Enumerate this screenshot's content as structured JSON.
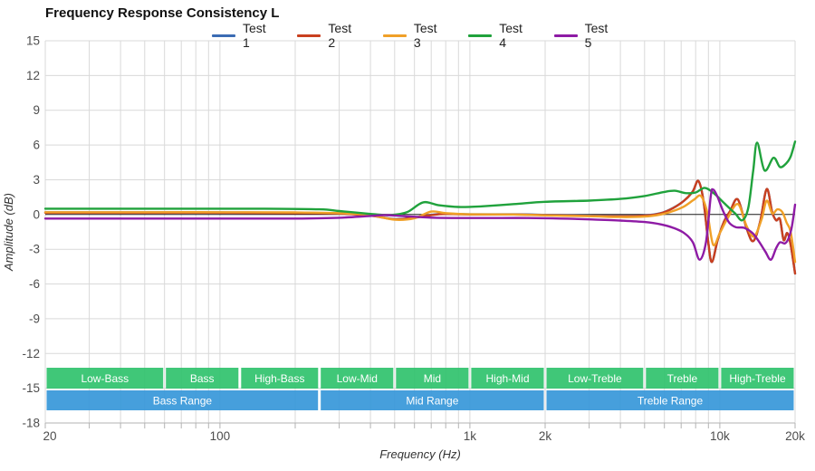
{
  "title": "Frequency Response Consistency L",
  "legend": [
    {
      "label": "Test 1",
      "color": "#3b6cb4"
    },
    {
      "label": "Test 2",
      "color": "#c9401f"
    },
    {
      "label": "Test 3",
      "color": "#f0a028"
    },
    {
      "label": "Test 4",
      "color": "#20a23c"
    },
    {
      "label": "Test 5",
      "color": "#8e1ba5"
    }
  ],
  "chart_data": {
    "type": "line",
    "title": "Frequency Response Consistency L",
    "xlabel": "Frequency (Hz)",
    "ylabel": "Amplitude (dB)",
    "x_scale": "log",
    "xlim": [
      20,
      20000
    ],
    "ylim": [
      -18,
      15
    ],
    "y_ticks": [
      15,
      12,
      9,
      6,
      3,
      0,
      -3,
      -6,
      -9,
      -12,
      -15,
      -18
    ],
    "x_ticks": [
      {
        "v": 20,
        "label": "20"
      },
      {
        "v": 100,
        "label": "100"
      },
      {
        "v": 1000,
        "label": "1k"
      },
      {
        "v": 2000,
        "label": "2k"
      },
      {
        "v": 10000,
        "label": "10k"
      },
      {
        "v": 20000,
        "label": "20k"
      }
    ],
    "grid": true,
    "legend_position": "top",
    "colors": {
      "grid": "#d9d9d9",
      "zero_line": "#1a1a1a",
      "axis": "#b3b3b3",
      "tick_label": "#4d4d4d",
      "axis_title": "#333333",
      "band_sub": "#30c26d",
      "band_main": "#3697d9",
      "band_text": "#ffffff"
    },
    "series": [
      {
        "name": "Test 1",
        "color": "#3b6cb4",
        "points": [
          [
            20,
            0.18
          ],
          [
            50,
            0.18
          ],
          [
            100,
            0.18
          ],
          [
            200,
            0.15
          ],
          [
            300,
            0.1
          ],
          [
            400,
            -0.07
          ],
          [
            500,
            -0.4
          ],
          [
            600,
            -0.26
          ],
          [
            700,
            -0.03
          ],
          [
            800,
            0.07
          ],
          [
            1000,
            0.02
          ],
          [
            1500,
            0.02
          ],
          [
            2000,
            -0.03
          ],
          [
            3000,
            -0.1
          ],
          [
            4000,
            -0.13
          ],
          [
            5000,
            -0.08
          ],
          [
            5800,
            0.12
          ],
          [
            6500,
            0.57
          ],
          [
            7200,
            1.2
          ],
          [
            7800,
            2.0
          ],
          [
            8200,
            2.9
          ],
          [
            8600,
            1.2
          ],
          [
            9000,
            -2.5
          ],
          [
            9300,
            -4.1
          ],
          [
            9800,
            -2.2
          ],
          [
            10400,
            -0.6
          ],
          [
            11000,
            0.3
          ],
          [
            11800,
            1.3
          ],
          [
            12800,
            -1.2
          ],
          [
            13600,
            -2.3
          ],
          [
            14500,
            -0.6
          ],
          [
            15400,
            2.2
          ],
          [
            16200,
            0.2
          ],
          [
            16800,
            -0.5
          ],
          [
            17400,
            -0.4
          ],
          [
            18000,
            -2.2
          ],
          [
            18600,
            -1.6
          ],
          [
            19200,
            -2.6
          ],
          [
            20000,
            -5.1
          ]
        ]
      },
      {
        "name": "Test 2",
        "color": "#c9401f",
        "points": [
          [
            20,
            0.15
          ],
          [
            50,
            0.15
          ],
          [
            100,
            0.15
          ],
          [
            200,
            0.12
          ],
          [
            300,
            0.08
          ],
          [
            400,
            -0.1
          ],
          [
            500,
            -0.42
          ],
          [
            600,
            -0.28
          ],
          [
            700,
            -0.05
          ],
          [
            800,
            0.05
          ],
          [
            1000,
            0.0
          ],
          [
            1500,
            0.0
          ],
          [
            2000,
            -0.05
          ],
          [
            3000,
            -0.12
          ],
          [
            4000,
            -0.15
          ],
          [
            5000,
            -0.1
          ],
          [
            5800,
            0.1
          ],
          [
            6500,
            0.55
          ],
          [
            7200,
            1.2
          ],
          [
            7800,
            2.0
          ],
          [
            8200,
            2.9
          ],
          [
            8600,
            1.2
          ],
          [
            9000,
            -2.5
          ],
          [
            9300,
            -4.1
          ],
          [
            9800,
            -2.2
          ],
          [
            10400,
            -0.6
          ],
          [
            11000,
            0.3
          ],
          [
            11800,
            1.3
          ],
          [
            12800,
            -1.2
          ],
          [
            13600,
            -2.3
          ],
          [
            14500,
            -0.6
          ],
          [
            15400,
            2.2
          ],
          [
            16200,
            0.2
          ],
          [
            16800,
            -0.5
          ],
          [
            17400,
            -0.4
          ],
          [
            18000,
            -2.2
          ],
          [
            18600,
            -1.6
          ],
          [
            19200,
            -2.6
          ],
          [
            20000,
            -5.1
          ]
        ]
      },
      {
        "name": "Test 3",
        "color": "#f0a028",
        "points": [
          [
            20,
            0.2
          ],
          [
            50,
            0.2
          ],
          [
            100,
            0.2
          ],
          [
            200,
            0.18
          ],
          [
            300,
            0.12
          ],
          [
            400,
            -0.05
          ],
          [
            500,
            -0.45
          ],
          [
            600,
            -0.32
          ],
          [
            700,
            0.25
          ],
          [
            800,
            0.12
          ],
          [
            1000,
            0.02
          ],
          [
            1500,
            0.0
          ],
          [
            2000,
            -0.08
          ],
          [
            3000,
            -0.15
          ],
          [
            4000,
            -0.22
          ],
          [
            5000,
            -0.18
          ],
          [
            5800,
            0.0
          ],
          [
            6500,
            0.3
          ],
          [
            7200,
            0.7
          ],
          [
            7900,
            1.3
          ],
          [
            8400,
            1.6
          ],
          [
            8900,
            0.2
          ],
          [
            9400,
            -2.6
          ],
          [
            10000,
            -1.6
          ],
          [
            10700,
            -0.4
          ],
          [
            11800,
            0.9
          ],
          [
            12800,
            -1.0
          ],
          [
            13700,
            -1.9
          ],
          [
            14700,
            -0.4
          ],
          [
            15400,
            1.2
          ],
          [
            16200,
            0.1
          ],
          [
            17000,
            0.45
          ],
          [
            17800,
            0.2
          ],
          [
            18500,
            -0.7
          ],
          [
            19200,
            -1.5
          ],
          [
            20000,
            -4.1
          ]
        ]
      },
      {
        "name": "Test 4",
        "color": "#20a23c",
        "points": [
          [
            20,
            0.5
          ],
          [
            40,
            0.5
          ],
          [
            80,
            0.5
          ],
          [
            150,
            0.5
          ],
          [
            250,
            0.45
          ],
          [
            300,
            0.3
          ],
          [
            400,
            0.05
          ],
          [
            480,
            -0.05
          ],
          [
            560,
            0.2
          ],
          [
            650,
            1.05
          ],
          [
            750,
            0.8
          ],
          [
            900,
            0.65
          ],
          [
            1100,
            0.7
          ],
          [
            1500,
            0.9
          ],
          [
            2000,
            1.1
          ],
          [
            3000,
            1.2
          ],
          [
            4000,
            1.35
          ],
          [
            5000,
            1.6
          ],
          [
            6000,
            1.95
          ],
          [
            6600,
            2.05
          ],
          [
            7300,
            1.85
          ],
          [
            8000,
            1.9
          ],
          [
            8700,
            2.3
          ],
          [
            9500,
            1.8
          ],
          [
            10500,
            0.9
          ],
          [
            11500,
            0.1
          ],
          [
            12300,
            -0.5
          ],
          [
            13000,
            0.6
          ],
          [
            13600,
            3.8
          ],
          [
            14100,
            6.2
          ],
          [
            15100,
            3.8
          ],
          [
            16400,
            4.9
          ],
          [
            17400,
            4.1
          ],
          [
            18400,
            4.4
          ],
          [
            19200,
            5.0
          ],
          [
            20000,
            6.3
          ]
        ]
      },
      {
        "name": "Test 5",
        "color": "#8e1ba5",
        "points": [
          [
            20,
            -0.35
          ],
          [
            50,
            -0.35
          ],
          [
            100,
            -0.35
          ],
          [
            200,
            -0.35
          ],
          [
            300,
            -0.28
          ],
          [
            400,
            -0.12
          ],
          [
            460,
            -0.05
          ],
          [
            550,
            -0.15
          ],
          [
            700,
            -0.27
          ],
          [
            900,
            -0.3
          ],
          [
            1200,
            -0.3
          ],
          [
            1700,
            -0.3
          ],
          [
            2300,
            -0.35
          ],
          [
            3000,
            -0.42
          ],
          [
            4000,
            -0.52
          ],
          [
            5000,
            -0.65
          ],
          [
            5800,
            -0.85
          ],
          [
            6500,
            -1.15
          ],
          [
            7200,
            -1.6
          ],
          [
            7800,
            -2.4
          ],
          [
            8300,
            -3.9
          ],
          [
            8800,
            -2.4
          ],
          [
            9200,
            1.6
          ],
          [
            9400,
            2.15
          ],
          [
            9800,
            1.5
          ],
          [
            10300,
            0.3
          ],
          [
            10900,
            -0.7
          ],
          [
            11600,
            -1.1
          ],
          [
            12500,
            -1.15
          ],
          [
            13500,
            -1.6
          ],
          [
            14300,
            -2.3
          ],
          [
            15200,
            -3.2
          ],
          [
            16000,
            -3.9
          ],
          [
            16800,
            -2.9
          ],
          [
            17400,
            -2.4
          ],
          [
            18200,
            -2.5
          ],
          [
            18800,
            -2.1
          ],
          [
            19400,
            -1.1
          ],
          [
            20000,
            0.85
          ]
        ]
      }
    ],
    "bands": {
      "sub": [
        {
          "label": "Low-Bass",
          "from": 20,
          "to": 60
        },
        {
          "label": "Bass",
          "from": 60,
          "to": 120
        },
        {
          "label": "High-Bass",
          "from": 120,
          "to": 250
        },
        {
          "label": "Low-Mid",
          "from": 250,
          "to": 500
        },
        {
          "label": "Mid",
          "from": 500,
          "to": 1000
        },
        {
          "label": "High-Mid",
          "from": 1000,
          "to": 2000
        },
        {
          "label": "Low-Treble",
          "from": 2000,
          "to": 5000
        },
        {
          "label": "Treble",
          "from": 5000,
          "to": 10000
        },
        {
          "label": "High-Treble",
          "from": 10000,
          "to": 20000
        }
      ],
      "main": [
        {
          "label": "Bass Range",
          "from": 20,
          "to": 250
        },
        {
          "label": "Mid Range",
          "from": 250,
          "to": 2000
        },
        {
          "label": "Treble Range",
          "from": 2000,
          "to": 20000
        }
      ]
    }
  }
}
